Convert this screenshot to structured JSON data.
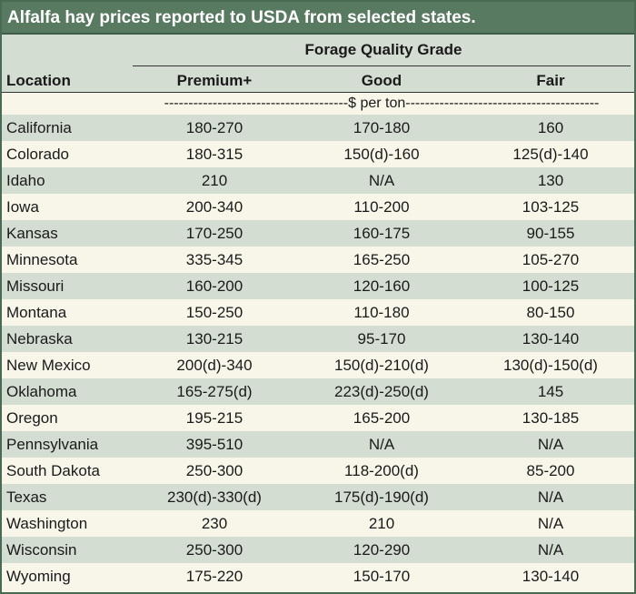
{
  "title": "Alfalfa hay prices reported to USDA from selected states.",
  "header": {
    "group_label": "Forage Quality Grade",
    "location_label": "Location",
    "columns": [
      "Premium+",
      "Good",
      "Fair"
    ],
    "unit_row": "--------------------------------------$ per ton----------------------------------------"
  },
  "rows": [
    {
      "location": "California",
      "premium": "180-270",
      "good": "170-180",
      "fair": "160"
    },
    {
      "location": "Colorado",
      "premium": "180-315",
      "good": "150(d)-160",
      "fair": "125(d)-140"
    },
    {
      "location": "Idaho",
      "premium": "210",
      "good": "N/A",
      "fair": "130"
    },
    {
      "location": "Iowa",
      "premium": "200-340",
      "good": "110-200",
      "fair": "103-125"
    },
    {
      "location": "Kansas",
      "premium": "170-250",
      "good": "160-175",
      "fair": "90-155"
    },
    {
      "location": "Minnesota",
      "premium": "335-345",
      "good": "165-250",
      "fair": "105-270"
    },
    {
      "location": "Missouri",
      "premium": "160-200",
      "good": "120-160",
      "fair": "100-125"
    },
    {
      "location": "Montana",
      "premium": "150-250",
      "good": "110-180",
      "fair": "80-150"
    },
    {
      "location": "Nebraska",
      "premium": "130-215",
      "good": "95-170",
      "fair": "130-140"
    },
    {
      "location": "New Mexico",
      "premium": "200(d)-340",
      "good": "150(d)-210(d)",
      "fair": "130(d)-150(d)"
    },
    {
      "location": "Oklahoma",
      "premium": "165-275(d)",
      "good": "223(d)-250(d)",
      "fair": "145"
    },
    {
      "location": "Oregon",
      "premium": "195-215",
      "good": "165-200",
      "fair": "130-185"
    },
    {
      "location": "Pennsylvania",
      "premium": "395-510",
      "good": "N/A",
      "fair": "N/A"
    },
    {
      "location": "South Dakota",
      "premium": "250-300",
      "good": "118-200(d)",
      "fair": "85-200"
    },
    {
      "location": "Texas",
      "premium": "230(d)-330(d)",
      "good": "175(d)-190(d)",
      "fair": "N/A"
    },
    {
      "location": "Washington",
      "premium": "230",
      "good": "210",
      "fair": "N/A"
    },
    {
      "location": "Wisconsin",
      "premium": "250-300",
      "good": "120-290",
      "fair": "N/A"
    },
    {
      "location": "Wyoming",
      "premium": "175-220",
      "good": "150-170",
      "fair": "130-140"
    }
  ]
}
